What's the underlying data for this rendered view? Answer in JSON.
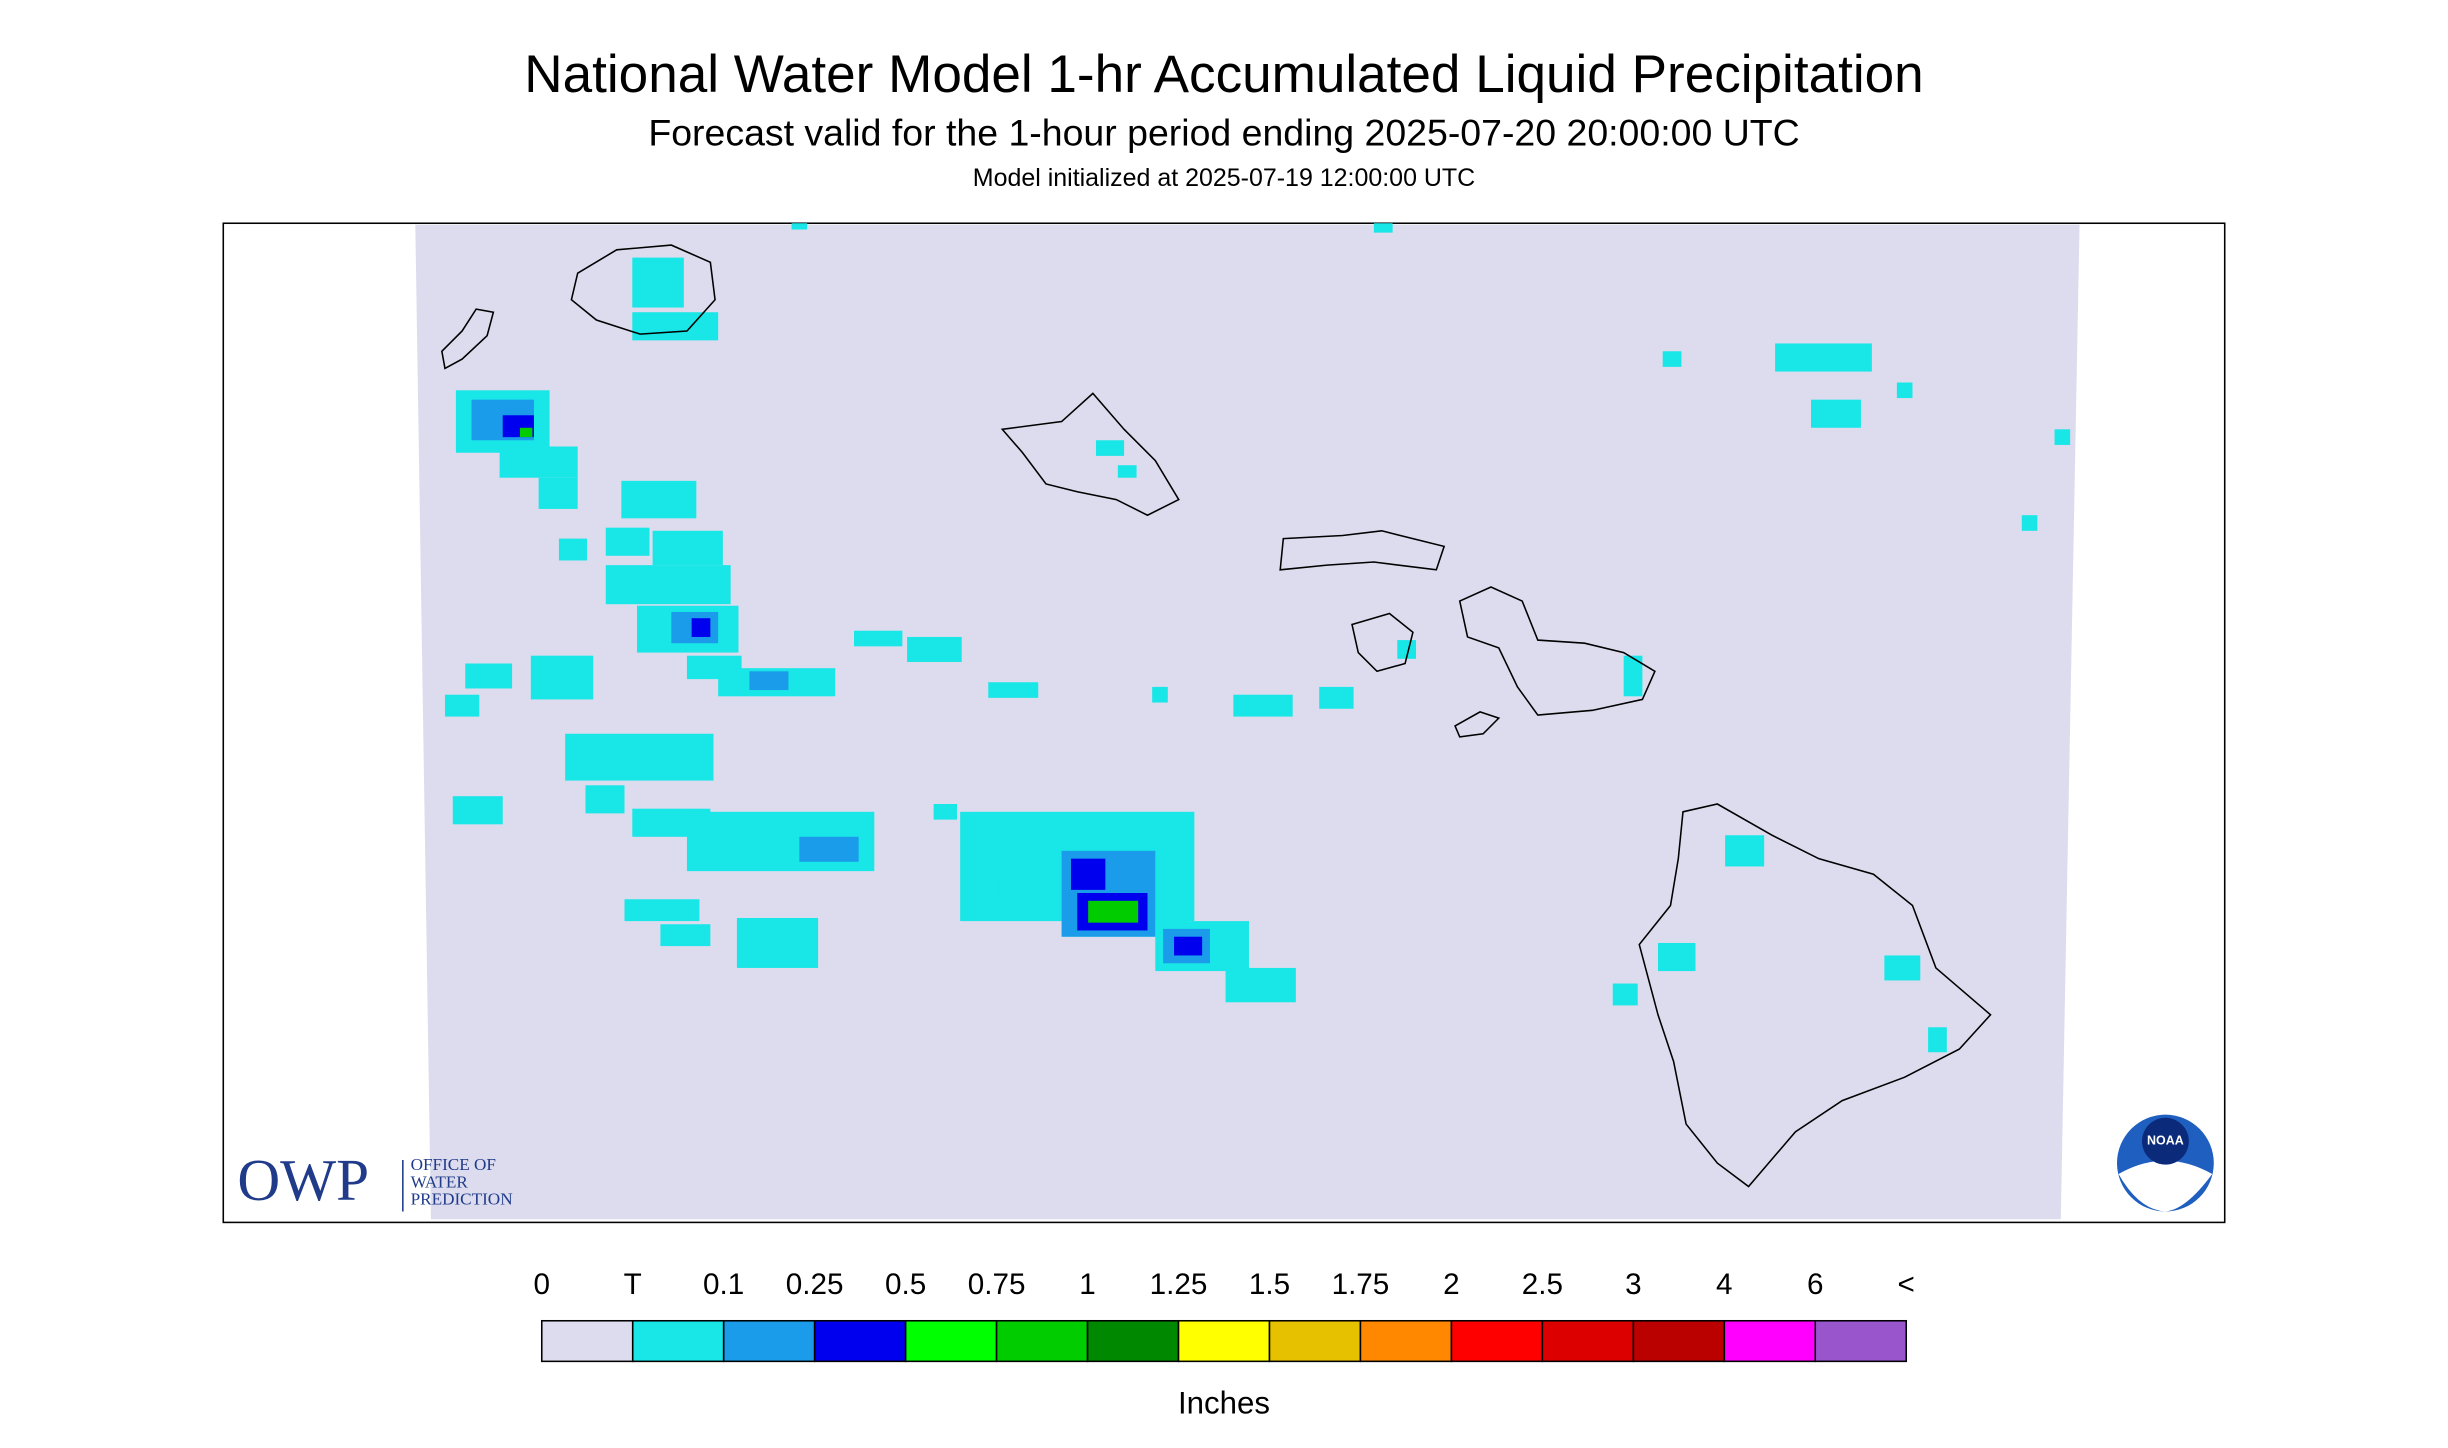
{
  "header": {
    "title": "National Water Model 1-hr Accumulated Liquid Precipitation",
    "subtitle": "Forecast valid for the 1-hour period ending 2025-07-20 20:00:00 UTC",
    "init": "Model initialized at 2025-07-19 12:00:00 UTC"
  },
  "logos": {
    "owp": "OWP",
    "owp_lines": [
      "OFFICE OF",
      "WATER",
      "PREDICTION"
    ],
    "noaa": "NOAA"
  },
  "legend": {
    "labels": [
      "0",
      "T",
      "0.1",
      "0.25",
      "0.5",
      "0.75",
      "1",
      "1.25",
      "1.5",
      "1.75",
      "2",
      "2.5",
      "3",
      "4",
      "6",
      "<"
    ],
    "colors": [
      "#dcdcee",
      "#19e6e6",
      "#1a9ceb",
      "#0000ee",
      "#00ff00",
      "#00cc00",
      "#008800",
      "#ffff00",
      "#e6c100",
      "#ff8800",
      "#ff0000",
      "#dd0000",
      "#bb0000",
      "#ff00ff",
      "#9955cc"
    ],
    "unit": "Inches"
  }
}
